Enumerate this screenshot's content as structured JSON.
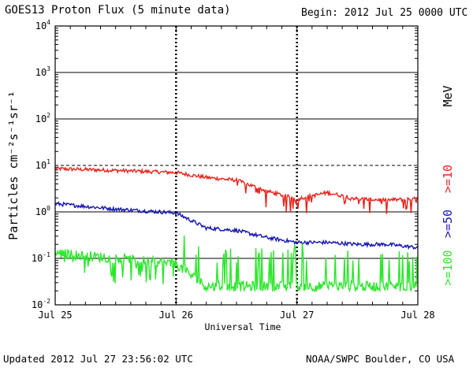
{
  "header": {
    "title": "GOES13 Proton Flux (5 minute data)",
    "begin": "Begin: 2012 Jul 25 0000 UTC"
  },
  "footer": {
    "updated": "Updated 2012 Jul 27 23:56:02 UTC",
    "credit": "NOAA/SWPC Boulder, CO USA"
  },
  "colors": {
    "ge10": "#e8231b",
    "ge50": "#1414b4",
    "ge100": "#2ce62c",
    "axis": "#000000"
  },
  "chart_data": {
    "type": "line",
    "title": "GOES13 Proton Flux (5 minute data)",
    "xlabel": "Universal Time",
    "ylabel": "Particles cm⁻²s⁻¹sr⁻¹",
    "unit_label": "MeV",
    "y_scale": "log",
    "ylim": [
      0.01,
      10000
    ],
    "y_ticks": [
      {
        "value": 0.01,
        "base": "10",
        "exp": "-2"
      },
      {
        "value": 0.1,
        "base": "10",
        "exp": "-1"
      },
      {
        "value": 1,
        "base": "10",
        "exp": "0"
      },
      {
        "value": 10,
        "base": "10",
        "exp": "1"
      },
      {
        "value": 100,
        "base": "10",
        "exp": "2"
      },
      {
        "value": 1000,
        "base": "10",
        "exp": "3"
      },
      {
        "value": 10000,
        "base": "10",
        "exp": "4"
      }
    ],
    "x_ticks": [
      "Jul 25",
      "Jul 26",
      "Jul 27",
      "Jul 28"
    ],
    "x_range_days": [
      0,
      3
    ],
    "threshold": 10,
    "grid": true,
    "legend_placement": "right",
    "series": [
      {
        "name": ">=10",
        "color": "#e8231b",
        "x": [
          "2012-07-25 00:00",
          "2012-07-25 12:00",
          "2012-07-26 00:00",
          "2012-07-26 06:00",
          "2012-07-26 12:00",
          "2012-07-26 18:00",
          "2012-07-27 00:00",
          "2012-07-27 06:00",
          "2012-07-27 12:00",
          "2012-07-27 18:00",
          "2012-07-28 00:00"
        ],
        "y": [
          8.5,
          7.8,
          7.0,
          5.5,
          4.8,
          2.8,
          1.9,
          2.6,
          1.9,
          1.8,
          1.9
        ]
      },
      {
        "name": ">=50",
        "color": "#1414b4",
        "x": [
          "2012-07-25 00:00",
          "2012-07-25 12:00",
          "2012-07-26 00:00",
          "2012-07-26 06:00",
          "2012-07-26 12:00",
          "2012-07-26 18:00",
          "2012-07-27 00:00",
          "2012-07-27 06:00",
          "2012-07-27 12:00",
          "2012-07-27 18:00",
          "2012-07-28 00:00"
        ],
        "y": [
          1.5,
          1.15,
          0.95,
          0.45,
          0.4,
          0.28,
          0.22,
          0.22,
          0.2,
          0.2,
          0.17
        ]
      },
      {
        "name": ">=100",
        "color": "#2ce62c",
        "x": [
          "2012-07-25 00:00",
          "2012-07-25 12:00",
          "2012-07-26 00:00",
          "2012-07-26 06:00",
          "2012-07-26 12:00",
          "2012-07-26 18:00",
          "2012-07-27 00:00",
          "2012-07-27 06:00",
          "2012-07-27 12:00",
          "2012-07-27 18:00",
          "2012-07-28 00:00"
        ],
        "y": [
          0.13,
          0.1,
          0.075,
          0.025,
          0.025,
          0.025,
          0.025,
          0.025,
          0.025,
          0.025,
          0.025
        ]
      }
    ]
  }
}
